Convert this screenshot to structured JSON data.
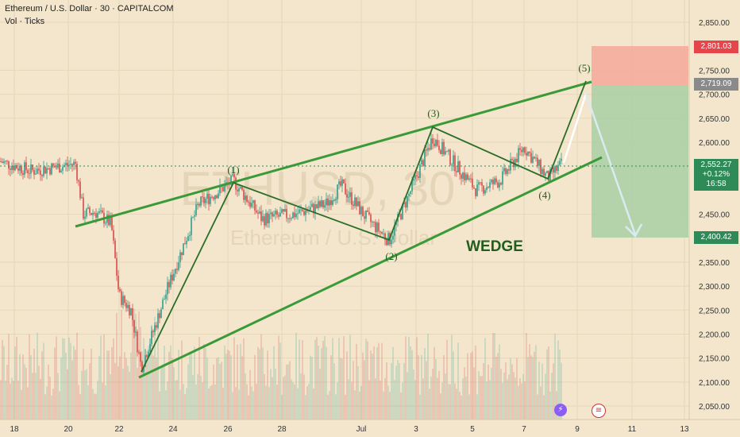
{
  "header": {
    "symbol_line": "Ethereum / U.S. Dollar · 30 · CAPITALCOM",
    "indicator_line": "Vol · Ticks"
  },
  "watermark": {
    "ticker": "ETHUSD, 30",
    "name": "Ethereum / U.S. Dollar"
  },
  "price_axis": {
    "labels": [
      "2,850.00",
      "2,750.00",
      "2,700.00",
      "2,650.00",
      "2,600.00",
      "2,450.00",
      "2,350.00",
      "2,300.00",
      "2,250.00",
      "2,200.00",
      "2,150.00",
      "2,100.00",
      "2,050.00"
    ]
  },
  "price_tags": {
    "stop": "2,801.03",
    "entry": "2,719.09",
    "current_price": "2,552.27",
    "current_change": "+0.12%",
    "countdown": "16:58",
    "target": "2,400.42"
  },
  "time_axis": {
    "labels": [
      "18",
      "20",
      "22",
      "24",
      "26",
      "28",
      "Jul",
      "3",
      "5",
      "7",
      "9",
      "11",
      "13"
    ]
  },
  "annotations": {
    "wave1": "(1)",
    "wave2": "(2)",
    "wave3": "(3)",
    "wave4": "(4)",
    "wave5": "(5)",
    "pattern": "WEDGE"
  },
  "colors": {
    "background": "#f3e6cc",
    "trendline": "#3b9a38",
    "wave_line": "#2a6e28",
    "stop_zone": "#f4a89a",
    "target_zone": "#a9cfa4",
    "candle_up": "#2f9e8e",
    "candle_down": "#d84a4a",
    "tag_red": "#e5454b",
    "tag_grey": "#8a8a8a",
    "tag_green": "#2e8b57"
  },
  "chart_data": {
    "type": "candlestick",
    "symbol": "Ethereum / U.S. Dollar",
    "interval": "30",
    "source": "CAPITALCOM",
    "last_price": 2552.27,
    "change_percent": 0.12,
    "wave_points": [
      {
        "label": "(1)",
        "date": "26",
        "price": 2515
      },
      {
        "label": "(2)",
        "date": "Jul",
        "price": 2390
      },
      {
        "label": "(3)",
        "date": "3",
        "price": 2630
      },
      {
        "label": "(4)",
        "date": "7",
        "price": 2530
      },
      {
        "label": "(5)",
        "date": "9",
        "price": 2720
      }
    ],
    "position": {
      "entry": 2719.09,
      "stop": 2801.03,
      "target": 2400.42
    },
    "pattern": "WEDGE"
  },
  "toolbar_icons": [
    "lightning-icon",
    "us-flag-icon"
  ]
}
